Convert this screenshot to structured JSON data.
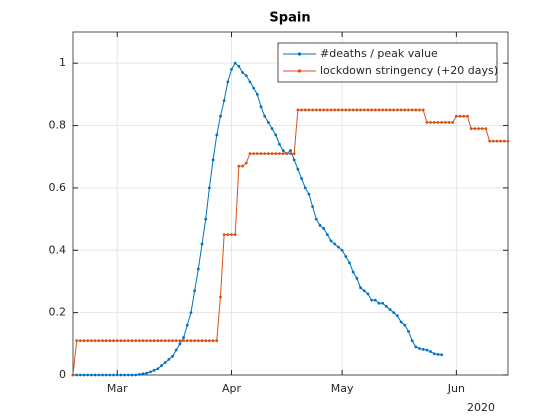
{
  "chart_data": {
    "type": "line",
    "title": "Spain",
    "x": [
      49,
      50,
      51,
      52,
      53,
      54,
      55,
      56,
      57,
      58,
      59,
      60,
      61,
      62,
      63,
      64,
      65,
      66,
      67,
      68,
      69,
      70,
      71,
      72,
      73,
      74,
      75,
      76,
      77,
      78,
      79,
      80,
      81,
      82,
      83,
      84,
      85,
      86,
      87,
      88,
      89,
      90,
      91,
      92,
      93,
      94,
      95,
      96,
      97,
      98,
      99,
      100,
      101,
      102,
      103,
      104,
      105,
      106,
      107,
      108,
      109,
      110,
      111,
      112,
      113,
      114,
      115,
      116,
      117,
      118,
      119,
      120,
      121,
      122,
      123,
      124,
      125,
      126,
      127,
      128,
      129,
      130,
      131,
      132,
      133,
      134,
      135,
      136,
      137,
      138,
      139,
      140,
      141,
      142,
      143,
      144,
      145,
      146,
      147,
      148,
      149,
      150,
      151,
      152,
      153,
      154,
      155,
      156,
      157,
      158,
      159,
      160,
      161,
      162,
      163,
      164,
      165,
      166,
      167
    ],
    "series": [
      {
        "name": "#deaths / peak value",
        "color": "#0072bd",
        "values": [
          0,
          0,
          0,
          0,
          0,
          0,
          0,
          0,
          0,
          0,
          0,
          0,
          0,
          0,
          0,
          0,
          0,
          0,
          0.002,
          0.004,
          0.006,
          0.01,
          0.015,
          0.02,
          0.03,
          0.04,
          0.05,
          0.06,
          0.08,
          0.1,
          0.12,
          0.16,
          0.2,
          0.27,
          0.34,
          0.42,
          0.5,
          0.6,
          0.69,
          0.77,
          0.83,
          0.88,
          0.94,
          0.98,
          1.0,
          0.99,
          0.97,
          0.96,
          0.94,
          0.92,
          0.9,
          0.86,
          0.83,
          0.81,
          0.79,
          0.77,
          0.74,
          0.72,
          0.71,
          0.72,
          0.69,
          0.66,
          0.63,
          0.6,
          0.58,
          0.54,
          0.5,
          0.48,
          0.47,
          0.45,
          0.43,
          0.42,
          0.41,
          0.4,
          0.38,
          0.36,
          0.33,
          0.31,
          0.28,
          0.27,
          0.26,
          0.24,
          0.24,
          0.23,
          0.23,
          0.22,
          0.21,
          0.2,
          0.19,
          0.17,
          0.16,
          0.14,
          0.11,
          0.09,
          0.085,
          0.082,
          0.08,
          0.075,
          0.068,
          0.066,
          0.065,
          null,
          null,
          null,
          null,
          null,
          null,
          null,
          null,
          null,
          null,
          null,
          null,
          null,
          null,
          null,
          null,
          null,
          null
        ]
      },
      {
        "name": "lockdown stringency (+20 days)",
        "color": "#d95319",
        "values": [
          0,
          0.11,
          0.11,
          0.11,
          0.11,
          0.11,
          0.11,
          0.11,
          0.11,
          0.11,
          0.11,
          0.11,
          0.11,
          0.11,
          0.11,
          0.11,
          0.11,
          0.11,
          0.11,
          0.11,
          0.11,
          0.11,
          0.11,
          0.11,
          0.11,
          0.11,
          0.11,
          0.11,
          0.11,
          0.11,
          0.11,
          0.11,
          0.11,
          0.11,
          0.11,
          0.11,
          0.11,
          0.11,
          0.11,
          0.11,
          0.25,
          0.45,
          0.45,
          0.45,
          0.45,
          0.67,
          0.67,
          0.68,
          0.71,
          0.71,
          0.71,
          0.71,
          0.71,
          0.71,
          0.71,
          0.71,
          0.71,
          0.71,
          0.71,
          0.71,
          0.71,
          0.85,
          0.85,
          0.85,
          0.85,
          0.85,
          0.85,
          0.85,
          0.85,
          0.85,
          0.85,
          0.85,
          0.85,
          0.85,
          0.85,
          0.85,
          0.85,
          0.85,
          0.85,
          0.85,
          0.85,
          0.85,
          0.85,
          0.85,
          0.85,
          0.85,
          0.85,
          0.85,
          0.85,
          0.85,
          0.85,
          0.85,
          0.85,
          0.85,
          0.85,
          0.85,
          0.81,
          0.81,
          0.81,
          0.81,
          0.81,
          0.81,
          0.81,
          0.81,
          0.83,
          0.83,
          0.83,
          0.83,
          0.79,
          0.79,
          0.79,
          0.79,
          0.79,
          0.75,
          0.75,
          0.75,
          0.75,
          0.75,
          0.75
        ]
      }
    ],
    "xlim": [
      49,
      167
    ],
    "xticks": [
      {
        "value": 61,
        "label": "Mar"
      },
      {
        "value": 92,
        "label": "Apr"
      },
      {
        "value": 122,
        "label": "May"
      },
      {
        "value": 153,
        "label": "Jun"
      }
    ],
    "x_secondary_label": "2020",
    "ylim": [
      0,
      1.1
    ],
    "yticks": [
      0,
      0.2,
      0.4,
      0.6,
      0.8,
      1
    ],
    "grid": true,
    "legend": "northeast"
  }
}
